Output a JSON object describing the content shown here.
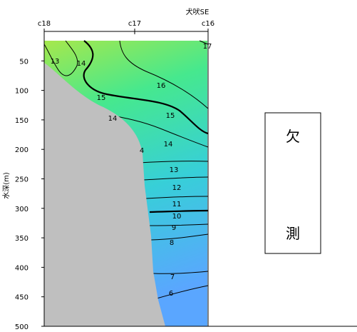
{
  "chart_data": {
    "type": "heatmap",
    "subtype": "vertical temperature section (contour)",
    "top_title": "犬吠SE",
    "ylabel": "水深(m)",
    "ylim": [
      0,
      500
    ],
    "y_reversed": true,
    "yticks": [
      50,
      100,
      150,
      200,
      250,
      300,
      350,
      400,
      450,
      500
    ],
    "stations": [
      {
        "name": "c18",
        "position": 0
      },
      {
        "name": "c17",
        "position": 1
      },
      {
        "name": "c16",
        "position": 2
      }
    ],
    "contour_levels": [
      6,
      7,
      8,
      9,
      10,
      11,
      12,
      13,
      14,
      15,
      16,
      17
    ],
    "bold_contours": [
      10,
      15
    ],
    "contour_labels": [
      "13",
      "14",
      "15",
      "16",
      "17",
      "14",
      "15",
      "14",
      "4",
      "13",
      "12",
      "11",
      "10",
      "9",
      "8",
      "7",
      "6"
    ],
    "missing_note": {
      "line1": "欠",
      "line2": "測"
    },
    "colors": {
      "warm": "#a6e84c",
      "mid": "#46e88e",
      "cool": "#37cfd8",
      "deep": "#5aa6ff",
      "seafloor": "#bfbfbf",
      "axis": "#000000"
    }
  }
}
